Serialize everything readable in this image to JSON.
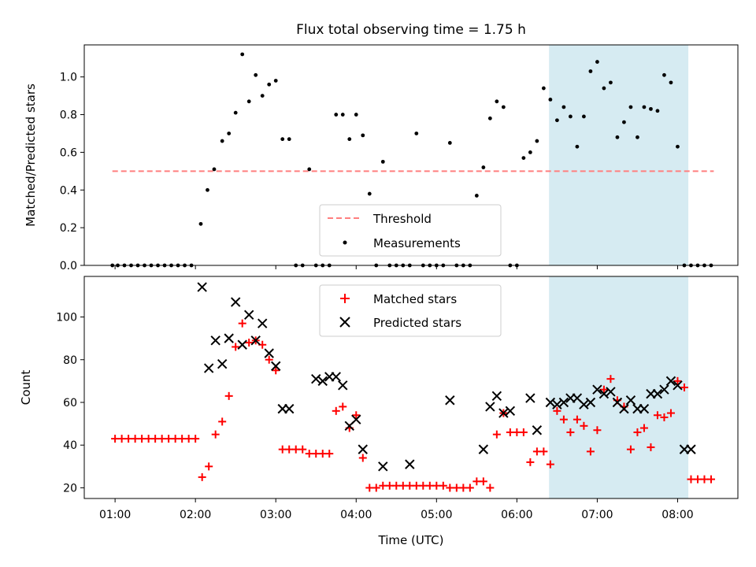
{
  "chart_data": [
    {
      "type": "scatter",
      "title": "Flux total observing time = 1.75 h",
      "xlabel": "",
      "ylabel": "Matched/Predicted stars",
      "ylim": [
        0,
        1.17
      ],
      "yticks": [
        0.0,
        0.2,
        0.4,
        0.6,
        0.8,
        1.0
      ],
      "ytick_labels": [
        "0.0",
        "0.2",
        "0.4",
        "0.6",
        "0.8",
        "1.0"
      ],
      "x_axis": {
        "type": "time",
        "min": "00:37",
        "max": "08:45"
      },
      "highlight_span": {
        "from": "06:24",
        "to": "08:08",
        "color": "#add8e6"
      },
      "legend": {
        "placement": "lower-center"
      },
      "series": [
        {
          "name": "Threshold",
          "kind": "line",
          "style": "dashed",
          "color": "#ff7f7f",
          "x": [
            "00:58",
            "08:27"
          ],
          "y": [
            0.5,
            0.5
          ]
        },
        {
          "name": "Measurements",
          "kind": "scatter",
          "marker": "dot",
          "color": "#000000",
          "x": [
            "00:58",
            "01:02",
            "01:07",
            "01:12",
            "01:17",
            "01:22",
            "01:27",
            "01:32",
            "01:37",
            "01:42",
            "01:47",
            "01:52",
            "01:57",
            "02:04",
            "02:09",
            "02:14",
            "02:20",
            "02:25",
            "02:30",
            "02:35",
            "02:40",
            "02:45",
            "02:50",
            "02:55",
            "03:00",
            "03:05",
            "03:10",
            "03:15",
            "03:20",
            "03:25",
            "03:30",
            "03:35",
            "03:40",
            "03:45",
            "03:50",
            "03:55",
            "04:00",
            "04:05",
            "04:10",
            "04:15",
            "04:20",
            "04:25",
            "04:30",
            "04:35",
            "04:40",
            "04:45",
            "04:50",
            "04:55",
            "05:00",
            "05:05",
            "05:10",
            "05:15",
            "05:20",
            "05:25",
            "05:30",
            "05:35",
            "05:40",
            "05:45",
            "05:50",
            "05:55",
            "06:00",
            "06:05",
            "06:10",
            "06:15",
            "06:20",
            "06:25",
            "06:30",
            "06:35",
            "06:40",
            "06:45",
            "06:50",
            "06:55",
            "07:00",
            "07:05",
            "07:10",
            "07:15",
            "07:20",
            "07:25",
            "07:30",
            "07:35",
            "07:40",
            "07:45",
            "07:50",
            "07:55",
            "08:00",
            "08:05",
            "08:10",
            "08:15",
            "08:20",
            "08:25"
          ],
          "y": [
            0,
            0,
            0,
            0,
            0,
            0,
            0,
            0,
            0,
            0,
            0,
            0,
            0,
            0.22,
            0.4,
            0.51,
            0.66,
            0.7,
            0.81,
            1.12,
            0.87,
            1.01,
            0.9,
            0.96,
            0.98,
            0.67,
            0.67,
            0,
            0,
            0.51,
            0,
            0,
            0,
            0.8,
            0.8,
            0.67,
            0.8,
            0.69,
            0.38,
            0,
            0.55,
            0,
            0,
            0,
            0,
            0.7,
            0,
            0,
            0,
            0,
            0.65,
            0,
            0,
            0,
            0.37,
            0.52,
            0.78,
            0.87,
            0.84,
            0,
            0,
            0.57,
            0.6,
            0.66,
            0.94,
            0.88,
            0.77,
            0.84,
            0.79,
            0.63,
            0.79,
            1.03,
            1.08,
            0.94,
            0.97,
            0.68,
            0.76,
            0.84,
            0.68,
            0.84,
            0.83,
            0.82,
            1.01,
            0.97,
            0.63,
            0,
            0,
            0,
            0,
            0
          ]
        }
      ]
    },
    {
      "type": "scatter",
      "title": "",
      "xlabel": "Time (UTC)",
      "ylabel": "Count",
      "ylim": [
        15,
        119
      ],
      "yticks": [
        20,
        40,
        60,
        80,
        100
      ],
      "ytick_labels": [
        "20",
        "40",
        "60",
        "80",
        "100"
      ],
      "x_axis": {
        "type": "time",
        "min": "00:37",
        "max": "08:45"
      },
      "xticks": [
        "01:00",
        "02:00",
        "03:00",
        "04:00",
        "05:00",
        "06:00",
        "07:00",
        "08:00"
      ],
      "highlight_span": {
        "from": "06:24",
        "to": "08:08",
        "color": "#add8e6"
      },
      "legend": {
        "placement": "upper-center"
      },
      "series": [
        {
          "name": "Matched stars",
          "kind": "scatter",
          "marker": "plus",
          "color": "#ff0000",
          "x": [
            "01:00",
            "01:05",
            "01:10",
            "01:15",
            "01:20",
            "01:25",
            "01:30",
            "01:35",
            "01:40",
            "01:45",
            "01:50",
            "01:55",
            "02:00",
            "02:05",
            "02:10",
            "02:15",
            "02:20",
            "02:25",
            "02:30",
            "02:35",
            "02:40",
            "02:45",
            "02:50",
            "02:55",
            "03:00",
            "03:05",
            "03:10",
            "03:15",
            "03:20",
            "03:25",
            "03:30",
            "03:35",
            "03:40",
            "03:45",
            "03:50",
            "03:55",
            "04:00",
            "04:05",
            "04:10",
            "04:15",
            "04:20",
            "04:25",
            "04:30",
            "04:35",
            "04:40",
            "04:45",
            "04:50",
            "04:55",
            "05:00",
            "05:05",
            "05:10",
            "05:15",
            "05:20",
            "05:25",
            "05:30",
            "05:35",
            "05:40",
            "05:45",
            "05:50",
            "05:55",
            "06:00",
            "06:05",
            "06:10",
            "06:15",
            "06:20",
            "06:25",
            "06:30",
            "06:35",
            "06:40",
            "06:45",
            "06:50",
            "06:55",
            "07:00",
            "07:05",
            "07:10",
            "07:15",
            "07:20",
            "07:25",
            "07:30",
            "07:35",
            "07:40",
            "07:45",
            "07:50",
            "07:55",
            "08:00",
            "08:05",
            "08:10",
            "08:15",
            "08:20",
            "08:25"
          ],
          "y": [
            43,
            43,
            43,
            43,
            43,
            43,
            43,
            43,
            43,
            43,
            43,
            43,
            43,
            25,
            30,
            45,
            51,
            63,
            86,
            97,
            88,
            89,
            87,
            80,
            75,
            38,
            38,
            38,
            38,
            36,
            36,
            36,
            36,
            56,
            58,
            48,
            54,
            34,
            20,
            20,
            21,
            21,
            21,
            21,
            21,
            21,
            21,
            21,
            21,
            21,
            20,
            20,
            20,
            20,
            23,
            23,
            20,
            45,
            55,
            46,
            46,
            46,
            32,
            37,
            37,
            31,
            56,
            52,
            46,
            52,
            49,
            37,
            47,
            66,
            71,
            61,
            58,
            38,
            46,
            48,
            39,
            54,
            53,
            55,
            70,
            67,
            24,
            24,
            24,
            24
          ]
        },
        {
          "name": "Predicted stars",
          "kind": "scatter",
          "marker": "x",
          "color": "#000000",
          "x": [
            "02:05",
            "02:10",
            "02:15",
            "02:20",
            "02:25",
            "02:30",
            "02:35",
            "02:40",
            "02:45",
            "02:50",
            "02:55",
            "03:00",
            "03:05",
            "03:10",
            "03:30",
            "03:35",
            "03:40",
            "03:45",
            "03:50",
            "03:55",
            "04:00",
            "04:05",
            "04:20",
            "04:40",
            "05:10",
            "05:35",
            "05:40",
            "05:45",
            "05:50",
            "05:55",
            "06:10",
            "06:15",
            "06:25",
            "06:30",
            "06:35",
            "06:40",
            "06:45",
            "06:50",
            "06:55",
            "07:00",
            "07:05",
            "07:10",
            "07:15",
            "07:20",
            "07:25",
            "07:30",
            "07:35",
            "07:40",
            "07:45",
            "07:50",
            "07:55",
            "08:00",
            "08:05",
            "08:10"
          ],
          "y": [
            114,
            76,
            89,
            78,
            90,
            107,
            87,
            101,
            89,
            97,
            83,
            77,
            57,
            57,
            71,
            70,
            72,
            72,
            68,
            49,
            52,
            38,
            30,
            31,
            61,
            38,
            58,
            63,
            55,
            56,
            62,
            47,
            60,
            59,
            60,
            62,
            62,
            59,
            60,
            66,
            64,
            65,
            60,
            57,
            61,
            57,
            57,
            64,
            64,
            66,
            70,
            68,
            38,
            38
          ]
        }
      ]
    }
  ]
}
